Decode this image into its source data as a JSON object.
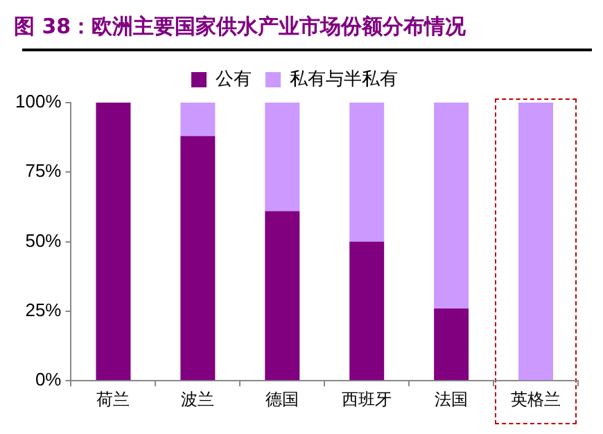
{
  "chart_data": {
    "type": "bar",
    "title": "图 38：欧洲主要国家供水产业市场份额分布情况",
    "categories": [
      "荷兰",
      "波兰",
      "德国",
      "西班牙",
      "法国",
      "英格兰"
    ],
    "stacked": true,
    "series": [
      {
        "name": "公有",
        "color": "#800080",
        "values": [
          100,
          88,
          61,
          50,
          26,
          0
        ]
      },
      {
        "name": "私有与半私有",
        "color": "#cc99ff",
        "values": [
          0,
          12,
          39,
          50,
          74,
          100
        ]
      }
    ],
    "ylim": [
      0,
      100
    ],
    "yticks": [
      {
        "value": 0,
        "label": "0%"
      },
      {
        "value": 25,
        "label": "25%"
      },
      {
        "value": 50,
        "label": "50%"
      },
      {
        "value": 75,
        "label": "75%"
      },
      {
        "value": 100,
        "label": "100%"
      }
    ],
    "grid": false,
    "legend": "top"
  }
}
